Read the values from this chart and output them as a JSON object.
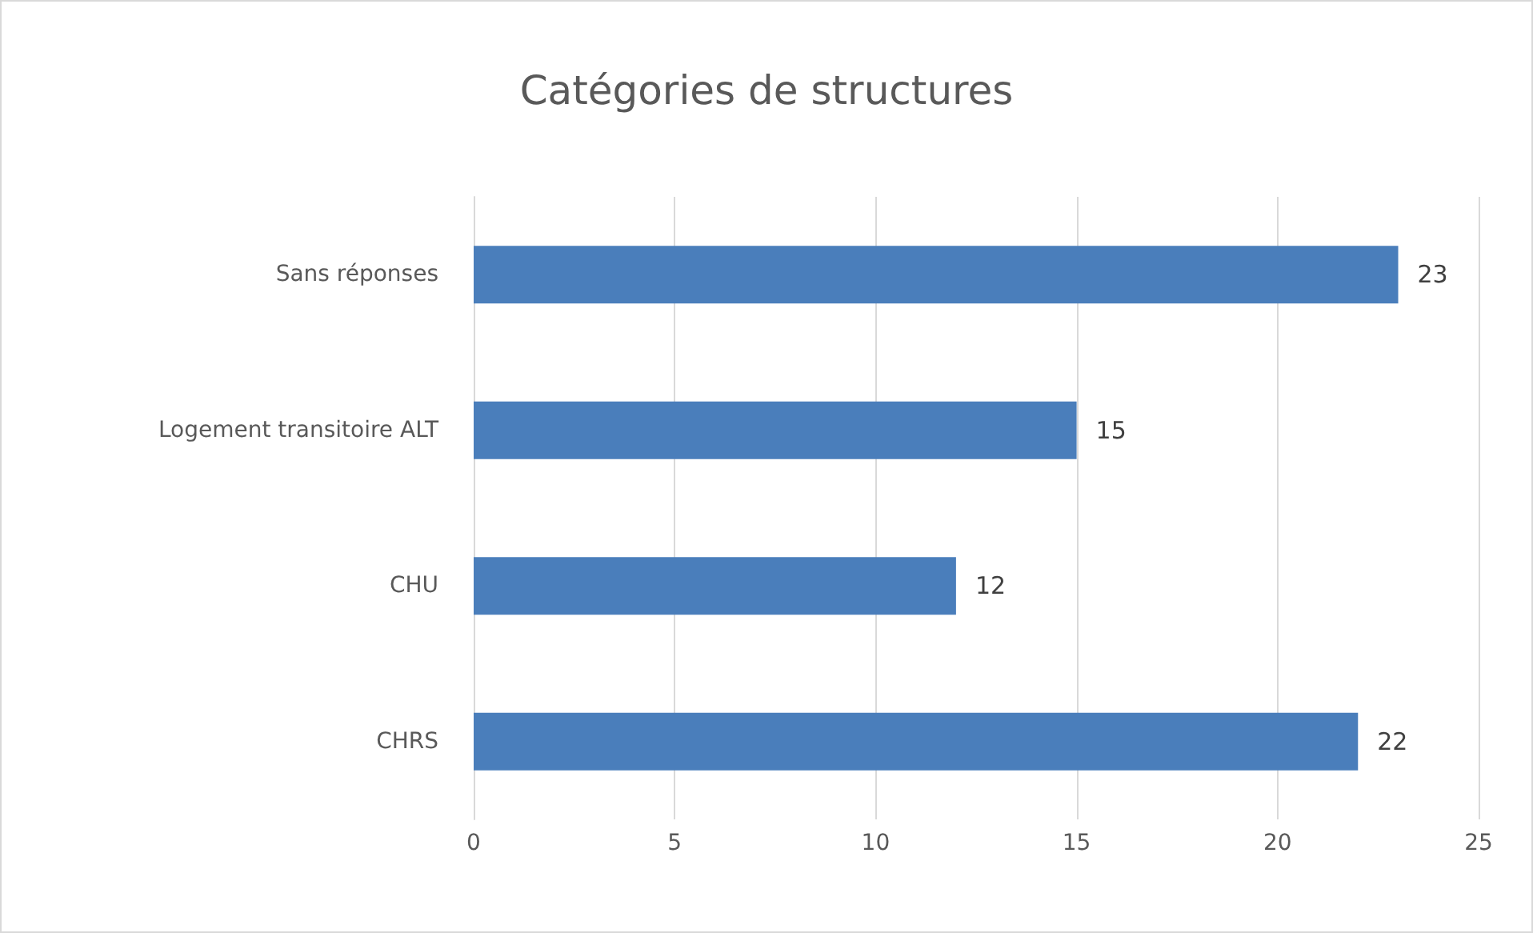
{
  "chart_data": {
    "type": "bar",
    "title": "Catégories de structures",
    "orientation": "horizontal",
    "categories": [
      "Sans réponses",
      "Logement transitoire ALT",
      "CHU",
      "CHRS"
    ],
    "values": [
      23,
      15,
      12,
      22
    ],
    "color": "#4a7ebb",
    "xlim": [
      0,
      25
    ],
    "xticks": [
      0,
      5,
      10,
      15,
      20,
      25
    ],
    "grid": "x",
    "data_labels": true
  }
}
